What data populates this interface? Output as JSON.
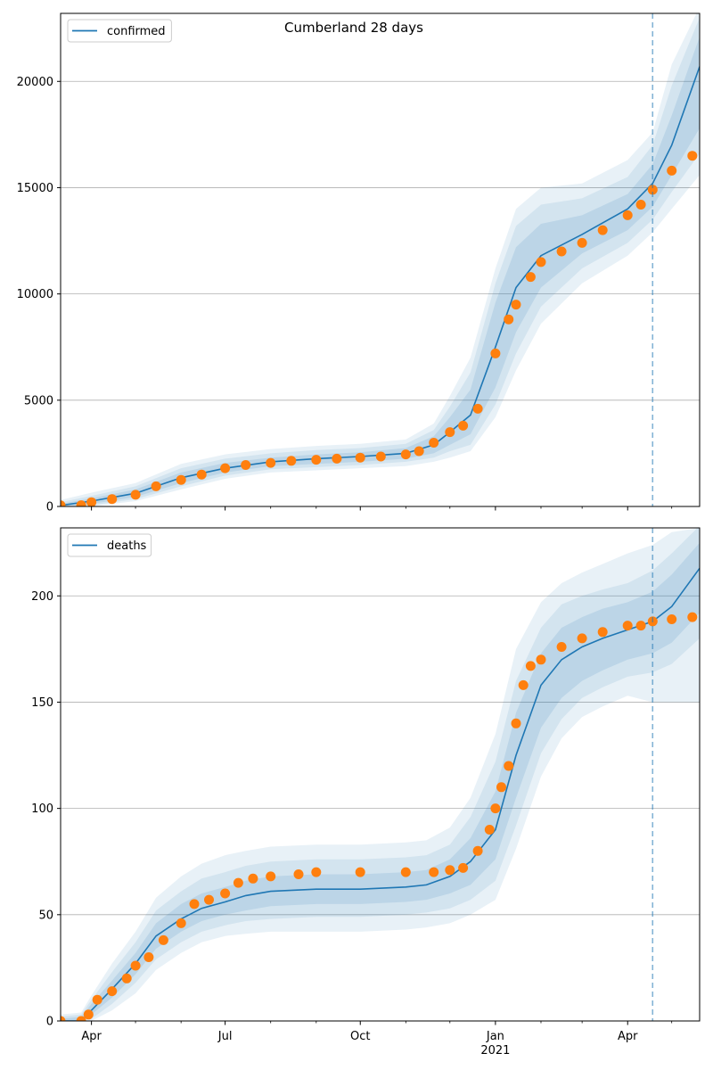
{
  "figure": {
    "title": "Cumberland 28 days"
  },
  "chart_data": [
    {
      "type": "line",
      "legend": {
        "label": "confirmed",
        "placement": "top-left"
      },
      "grid": "horizontal",
      "xlim": [
        "2020-03-11",
        "2021-05-20"
      ],
      "ylim": [
        0,
        23200
      ],
      "yticks": [
        0,
        5000,
        10000,
        15000,
        20000
      ],
      "xticks": [
        {
          "date": "2020-04-01",
          "label": "Apr"
        },
        {
          "date": "2020-07-01",
          "label": "Jul"
        },
        {
          "date": "2020-10-01",
          "label": "Oct"
        },
        {
          "date": "2021-01-01",
          "label": "Jan",
          "sublabel": "2021"
        },
        {
          "date": "2021-04-01",
          "label": "Apr"
        }
      ],
      "minor_xticks": [
        "2020-05-01",
        "2020-06-01",
        "2020-08-01",
        "2020-09-01",
        "2020-11-01",
        "2020-12-01",
        "2021-02-01",
        "2021-03-01",
        "2021-05-01"
      ],
      "cutoff_date": "2021-04-18",
      "model": {
        "x": [
          "2020-03-11",
          "2020-04-01",
          "2020-05-01",
          "2020-06-01",
          "2020-07-01",
          "2020-08-01",
          "2020-09-01",
          "2020-10-01",
          "2020-11-01",
          "2020-11-20",
          "2020-12-01",
          "2020-12-15",
          "2021-01-01",
          "2021-01-15",
          "2021-02-01",
          "2021-03-01",
          "2021-04-01",
          "2021-04-18",
          "2021-05-01",
          "2021-05-20"
        ],
        "y": [
          50,
          250,
          620,
          1350,
          1800,
          2100,
          2250,
          2350,
          2500,
          2900,
          3500,
          4300,
          7500,
          10300,
          11800,
          12800,
          14000,
          15200,
          17000,
          20700
        ],
        "bands": [
          {
            "lower": [
              10,
              120,
              450,
              1100,
              1600,
              1900,
              2000,
              2100,
              2250,
              2500,
              2900,
              3400,
              5600,
              8200,
              10300,
              11900,
              13000,
              14100,
              15600,
              17800
            ],
            "upper": [
              120,
              380,
              800,
              1600,
              2050,
              2300,
              2450,
              2550,
              2750,
              3300,
              4200,
              5500,
              9600,
              12200,
              13300,
              13700,
              14700,
              16100,
              18400,
              22100
            ]
          },
          {
            "lower": [
              0,
              50,
              350,
              950,
              1450,
              1750,
              1850,
              1950,
              2100,
              2300,
              2600,
              2900,
              4800,
              7200,
              9400,
              11200,
              12400,
              13500,
              14800,
              16600
            ],
            "upper": [
              200,
              500,
              950,
              1800,
              2250,
              2500,
              2650,
              2750,
              2950,
              3600,
              4700,
              6300,
              10500,
              13200,
              14200,
              14500,
              15500,
              17000,
              19800,
              23000
            ]
          },
          {
            "lower": [
              0,
              0,
              250,
              800,
              1300,
              1600,
              1700,
              1800,
              1900,
              2100,
              2300,
              2600,
              4200,
              6400,
              8600,
              10500,
              11800,
              12900,
              14000,
              15600
            ],
            "upper": [
              300,
              650,
              1100,
              2000,
              2450,
              2700,
              2850,
              2950,
              3150,
              3900,
              5200,
              7000,
              11200,
              14000,
              15000,
              15200,
              16300,
              17600,
              20800,
              23500
            ]
          }
        ]
      },
      "observed": {
        "x": [
          "2020-03-11",
          "2020-03-25",
          "2020-04-01",
          "2020-04-15",
          "2020-05-01",
          "2020-05-15",
          "2020-06-01",
          "2020-06-15",
          "2020-07-01",
          "2020-07-15",
          "2020-08-01",
          "2020-08-15",
          "2020-09-01",
          "2020-09-15",
          "2020-10-01",
          "2020-10-15",
          "2020-11-01",
          "2020-11-10",
          "2020-11-20",
          "2020-12-01",
          "2020-12-10",
          "2020-12-20",
          "2021-01-01",
          "2021-01-10",
          "2021-01-15",
          "2021-01-25",
          "2021-02-01",
          "2021-02-15",
          "2021-03-01",
          "2021-03-15",
          "2021-04-01",
          "2021-04-10",
          "2021-04-18",
          "2021-05-01",
          "2021-05-15"
        ],
        "y": [
          50,
          60,
          200,
          350,
          550,
          950,
          1250,
          1500,
          1800,
          1950,
          2050,
          2150,
          2200,
          2250,
          2300,
          2350,
          2450,
          2600,
          3000,
          3500,
          3800,
          4600,
          7200,
          8800,
          9500,
          10800,
          11500,
          12000,
          12400,
          13000,
          13700,
          14200,
          14900,
          15800,
          16500
        ]
      }
    },
    {
      "type": "line",
      "legend": {
        "label": "deaths",
        "placement": "top-left"
      },
      "grid": "horizontal",
      "xlim": [
        "2020-03-11",
        "2021-05-20"
      ],
      "ylim": [
        0,
        232
      ],
      "yticks": [
        0,
        50,
        100,
        150,
        200
      ],
      "xticks": [
        {
          "date": "2020-04-01",
          "label": "Apr"
        },
        {
          "date": "2020-07-01",
          "label": "Jul"
        },
        {
          "date": "2020-10-01",
          "label": "Oct"
        },
        {
          "date": "2021-01-01",
          "label": "Jan",
          "sublabel": "2021"
        },
        {
          "date": "2021-04-01",
          "label": "Apr"
        }
      ],
      "minor_xticks": [
        "2020-05-01",
        "2020-06-01",
        "2020-08-01",
        "2020-09-01",
        "2020-11-01",
        "2020-12-01",
        "2021-02-01",
        "2021-03-01",
        "2021-05-01"
      ],
      "cutoff_date": "2021-04-18",
      "model": {
        "x": [
          "2020-03-11",
          "2020-03-25",
          "2020-04-01",
          "2020-04-15",
          "2020-05-01",
          "2020-05-15",
          "2020-06-01",
          "2020-06-15",
          "2020-07-01",
          "2020-07-15",
          "2020-08-01",
          "2020-09-01",
          "2020-10-01",
          "2020-11-01",
          "2020-11-15",
          "2020-12-01",
          "2020-12-15",
          "2021-01-01",
          "2021-01-15",
          "2021-02-01",
          "2021-02-15",
          "2021-03-01",
          "2021-03-15",
          "2021-04-01",
          "2021-04-18",
          "2021-05-01",
          "2021-05-20"
        ],
        "y": [
          0,
          0,
          5,
          15,
          27,
          40,
          48,
          53,
          56,
          59,
          61,
          62,
          62,
          63,
          64,
          68,
          75,
          90,
          125,
          158,
          170,
          176,
          180,
          184,
          188,
          195,
          213
        ],
        "bands": [
          {
            "lower": [
              0,
              0,
              3,
              11,
              22,
              34,
              42,
              47,
              50,
              52,
              54,
              55,
              55,
              56,
              57,
              60,
              64,
              76,
              105,
              138,
              152,
              160,
              165,
              170,
              173,
              178,
              192
            ],
            "upper": [
              1,
              2,
              8,
              19,
              32,
              46,
              55,
              60,
              63,
              66,
              68,
              69,
              69,
              70,
              71,
              76,
              86,
              108,
              145,
              173,
              185,
              190,
              194,
              197,
              202,
              210,
              225
            ]
          },
          {
            "lower": [
              0,
              0,
              1,
              8,
              18,
              29,
              37,
              42,
              45,
              47,
              48,
              49,
              49,
              50,
              51,
              53,
              57,
              66,
              92,
              126,
              142,
              152,
              157,
              162,
              164,
              168,
              180
            ],
            "upper": [
              2,
              3,
              10,
              23,
              37,
              52,
              61,
              67,
              70,
              73,
              75,
              76,
              76,
              77,
              78,
              83,
              96,
              122,
              160,
              185,
              196,
              200,
              203,
              206,
              212,
              220,
              233
            ]
          },
          {
            "lower": [
              0,
              0,
              0,
              5,
              13,
              24,
              32,
              37,
              40,
              41,
              42,
              42,
              42,
              43,
              44,
              46,
              50,
              57,
              81,
              115,
              133,
              143,
              148,
              153,
              150,
              150,
              150
            ],
            "upper": [
              3,
              4,
              12,
              27,
              42,
              58,
              68,
              74,
              78,
              80,
              82,
              83,
              83,
              84,
              85,
              91,
              105,
              135,
              175,
              197,
              206,
              211,
              215,
              220,
              224,
              230,
              232
            ]
          }
        ]
      },
      "observed": {
        "x": [
          "2020-03-11",
          "2020-03-25",
          "2020-03-30",
          "2020-04-05",
          "2020-04-15",
          "2020-04-25",
          "2020-05-01",
          "2020-05-10",
          "2020-05-20",
          "2020-06-01",
          "2020-06-10",
          "2020-06-20",
          "2020-07-01",
          "2020-07-10",
          "2020-07-20",
          "2020-08-01",
          "2020-08-20",
          "2020-09-01",
          "2020-10-01",
          "2020-11-01",
          "2020-11-20",
          "2020-12-01",
          "2020-12-10",
          "2020-12-20",
          "2020-12-28",
          "2021-01-01",
          "2021-01-05",
          "2021-01-10",
          "2021-01-15",
          "2021-01-20",
          "2021-01-25",
          "2021-02-01",
          "2021-02-15",
          "2021-03-01",
          "2021-03-15",
          "2021-04-01",
          "2021-04-10",
          "2021-04-18",
          "2021-05-01",
          "2021-05-15"
        ],
        "y": [
          0,
          0,
          3,
          10,
          14,
          20,
          26,
          30,
          38,
          46,
          55,
          57,
          60,
          65,
          67,
          68,
          69,
          70,
          70,
          70,
          70,
          71,
          72,
          80,
          90,
          100,
          110,
          120,
          140,
          158,
          167,
          170,
          176,
          180,
          183,
          186,
          186,
          188,
          189,
          190
        ]
      }
    }
  ]
}
